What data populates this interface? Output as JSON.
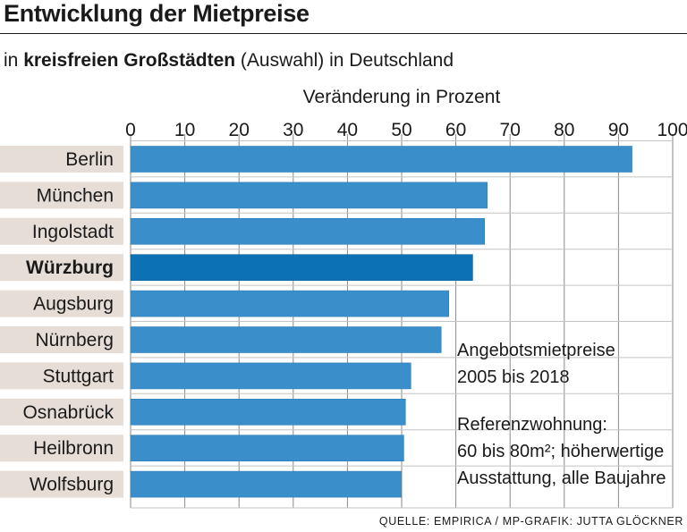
{
  "title": "Entwicklung der Mietpreise",
  "subtitle": {
    "pre": "in ",
    "bold": "kreisfreien Großstädten",
    "post": " (Auswahl) in Deutschland"
  },
  "source": "QUELLE: EMPIRICA / MP-GRAFIK: JUTTA GLÖCKNER",
  "notes": {
    "line1": "Angebotsmietpreise",
    "line2": "2005 bis 2018",
    "line3": "Referenzwohnung:",
    "line4": "60 bis 80m²; höherwertige",
    "line5": "Ausstattung, alle Baujahre"
  },
  "colors": {
    "bar": "#3a8fcb",
    "highlight_bar": "#0c72b5",
    "label_bg": "#e5ddd6",
    "grid": "#8a8a8a"
  },
  "chart_data": {
    "type": "bar",
    "orientation": "horizontal",
    "title": "Entwicklung der Mietpreise",
    "xlabel": "Veränderung in Prozent",
    "ylabel": "",
    "xlim": [
      0,
      100
    ],
    "ticks": [
      0,
      10,
      20,
      30,
      40,
      50,
      60,
      70,
      80,
      90,
      100
    ],
    "categories": [
      "Berlin",
      "München",
      "Ingolstadt",
      "Würzburg",
      "Augsburg",
      "Nürnberg",
      "Stuttgart",
      "Osnabrück",
      "Heilbronn",
      "Wolfsburg"
    ],
    "values": [
      92.5,
      65.8,
      65.3,
      63.1,
      58.7,
      57.3,
      51.7,
      50.7,
      50.4,
      49.9
    ],
    "highlight": "Würzburg"
  }
}
